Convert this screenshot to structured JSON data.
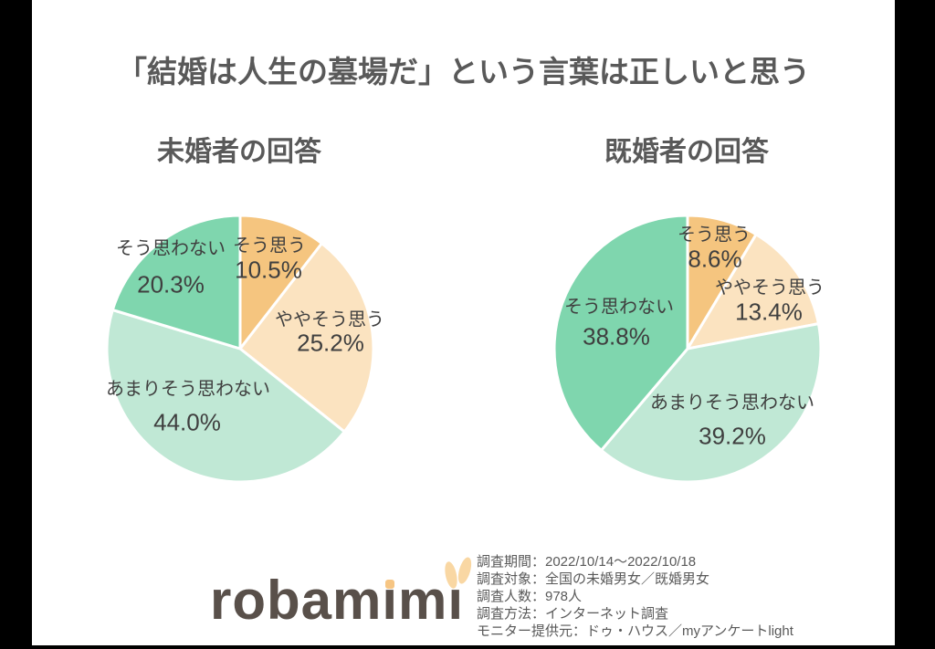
{
  "page": {
    "title": "「結婚は人生の墓場だ」という言葉は正しいと思う",
    "background_color": "#ffffff",
    "canvas_bar_color": "#000000",
    "title_color": "#595959",
    "label_color": "#3f3f3f"
  },
  "chart_data": [
    {
      "type": "pie",
      "title": "未婚者の回答",
      "labels": [
        "そう思う",
        "ややそう思う",
        "あまりそう思わない",
        "そう思わない"
      ],
      "values": [
        10.5,
        25.2,
        44.0,
        20.3
      ],
      "pct_labels": [
        "10.5%",
        "25.2%",
        "44.0%",
        "20.3%"
      ],
      "colors": [
        "#f5c57f",
        "#fbe3c0",
        "#c0e8d5",
        "#7fd6ae"
      ],
      "start_angle": "top",
      "direction": "clockwise",
      "slice_border_color": "#ffffff",
      "legend": "labels drawn on slices"
    },
    {
      "type": "pie",
      "title": "既婚者の回答",
      "labels": [
        "そう思う",
        "ややそう思う",
        "あまりそう思わない",
        "そう思わない"
      ],
      "values": [
        8.6,
        13.4,
        39.2,
        38.8
      ],
      "pct_labels": [
        "8.6%",
        "13.4%",
        "39.2%",
        "38.8%"
      ],
      "colors": [
        "#f5c57f",
        "#fbe3c0",
        "#c0e8d5",
        "#7fd6ae"
      ],
      "start_angle": "top",
      "direction": "clockwise",
      "slice_border_color": "#ffffff",
      "legend": "labels drawn on slices"
    }
  ],
  "footer": {
    "logo": {
      "text": "robamimi",
      "part1": "robam",
      "part2": "m",
      "dotless_i": "ı",
      "text_color": "#59504a",
      "accent_color": "#f6c583",
      "ear_color": "#f9d7a3"
    },
    "survey_info": [
      "調査期間：2022/10/14～2022/10/18",
      "調査対象：全国の未婚男女／既婚男女",
      "調査人数：978人",
      "調査方法：インターネット調査",
      "モニター提供元：ドゥ・ハウス／myアンケートlight"
    ]
  }
}
